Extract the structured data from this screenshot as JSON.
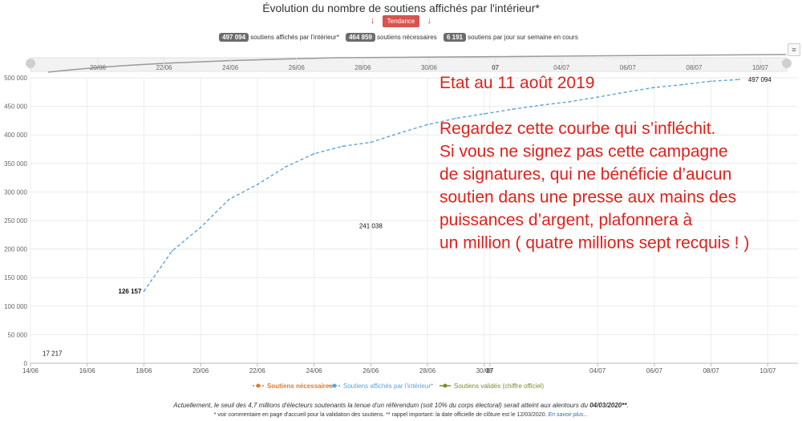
{
  "header": {
    "title": "Évolution du nombre de soutiens affichés par l'intérieur*",
    "trend_arrow_left": "↓",
    "trend_arrow_right": "↓",
    "trend_button": "Tendance"
  },
  "counters": [
    {
      "value": "497 094",
      "label": "soutiens affichés par l'intérieur*"
    },
    {
      "value": "464 859",
      "label": "soutiens nécessaires"
    },
    {
      "value": "6 191",
      "label": "soutiens par jour sur semaine en cours"
    }
  ],
  "menu_icon": "hamburger-icon",
  "chart_data": {
    "type": "line",
    "ylim": [
      0,
      500000
    ],
    "y_ticks": [
      "0",
      "50 000",
      "100 000",
      "150 000",
      "200 000",
      "250 000",
      "300 000",
      "350 000",
      "400 000",
      "450 000",
      "500 000"
    ],
    "x_ticks": [
      "14/06",
      "16/06",
      "18/06",
      "20/06",
      "22/06",
      "24/06",
      "26/06",
      "28/06",
      "30/06",
      "07",
      "04/07",
      "06/07",
      "08/07",
      "10/07"
    ],
    "navigator_ticks": [
      "20/06",
      "22/06",
      "24/06",
      "26/06",
      "28/06",
      "30/06",
      "07",
      "04/07",
      "06/07",
      "08/07",
      "10/07"
    ],
    "bold_tick": "07",
    "series": [
      {
        "name": "Soutiens affichés par l'intérieur*",
        "color": "#5ba4d9",
        "dashed": true,
        "points": [
          [
            "18/06",
            126157
          ],
          [
            "19/06",
            197000
          ],
          [
            "20/06",
            238000
          ],
          [
            "21/06",
            287000
          ],
          [
            "22/06",
            313000
          ],
          [
            "23/06",
            344000
          ],
          [
            "24/06",
            367000
          ],
          [
            "25/06",
            380000
          ],
          [
            "26/06",
            387000
          ],
          [
            "27/06",
            403000
          ],
          [
            "28/06",
            418000
          ],
          [
            "29/06",
            429000
          ],
          [
            "30/06",
            437000
          ],
          [
            "01/07",
            445000
          ],
          [
            "02/07",
            452000
          ],
          [
            "03/07",
            458000
          ],
          [
            "04/07",
            466000
          ],
          [
            "05/07",
            475000
          ],
          [
            "06/07",
            483000
          ],
          [
            "07/07",
            488000
          ],
          [
            "08/07",
            494000
          ],
          [
            "09/07",
            497094
          ]
        ]
      }
    ],
    "data_labels": [
      {
        "text": "17 217",
        "x": "14/06",
        "y": 17217
      },
      {
        "text": "126 157",
        "x": "18/06",
        "y": 126157
      },
      {
        "text": "241 038",
        "x": "26/06",
        "y": 241038
      },
      {
        "text": "497 094",
        "x": "10/07",
        "y": 497094
      }
    ],
    "legend": [
      {
        "label": "Soutiens nécessaires",
        "color": "#e07b2e"
      },
      {
        "label": "Soutiens affichés par l'intérieur*",
        "color": "#5ba4d9"
      },
      {
        "label": "Soutiens validés (chiffre officiel)",
        "color": "#7a8c2a"
      }
    ],
    "legend_placement": "bottom",
    "grid": true
  },
  "annotation": {
    "color": "#e0201b",
    "lines": [
      "Etat au 11 août 2019",
      "",
      "Regardez cette courbe qui s’infléchit.",
      "Si vous ne signez pas cette campagne",
      "de signatures, qui ne bénéficie d’aucun",
      "soutien dans une presse aux  mains des",
      "puissances d’argent, plafonnera à",
      "un million ( quatre millions sept recquis ! )"
    ]
  },
  "footer": {
    "text": "Actuellement, le seuil des 4,7 millions d'électeurs soutenants la tenue d'un référendum (soit 10% du corps électoral) serait atteint aux alentours du",
    "date": "04/03/2020**",
    "end": ".",
    "note": "* voir commentaire en page d'accueil pour la validation des soutiens.     ** rappel important: la date officielle de clôture est le 12/03/2020.",
    "link": "En savoir plus..."
  }
}
